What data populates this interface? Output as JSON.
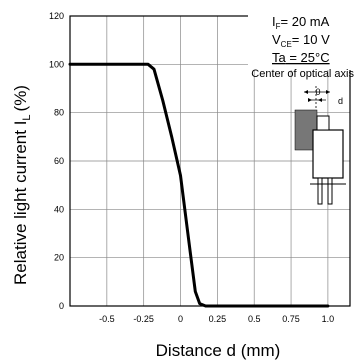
{
  "chart_data": {
    "type": "line",
    "xlabel": "Distance d (mm)",
    "ylabel_main": "Relative light current I",
    "ylabel_sub": "L",
    "ylabel_unit": "(%)",
    "xlim": [
      -0.75,
      1.15
    ],
    "ylim": [
      0,
      120
    ],
    "x_ticks": [
      -0.5,
      -0.25,
      0,
      0.25,
      0.5,
      0.75,
      1.0
    ],
    "x_tick_labels": [
      "-0.5",
      "-0.25",
      "0",
      "0.25",
      "0.5",
      "0.75",
      "1.0"
    ],
    "y_ticks": [
      0,
      20,
      40,
      60,
      80,
      100,
      120
    ],
    "y_tick_labels": [
      "0",
      "20",
      "40",
      "60",
      "80",
      "100",
      "120"
    ],
    "grid": true,
    "series": [
      {
        "x": [
          -0.75,
          -0.3,
          -0.22,
          -0.18,
          -0.12,
          -0.06,
          0.0,
          0.06,
          0.1,
          0.13,
          0.17,
          0.25,
          1.0
        ],
        "y": [
          100,
          100,
          100,
          98,
          85,
          70,
          54,
          25,
          6,
          1,
          0,
          0,
          0
        ]
      }
    ],
    "annotations": {
      "conditions": [
        {
          "main": "I",
          "sub": "F",
          "rest": "= 20 mA"
        },
        {
          "main": "V",
          "sub": "CE",
          "rest": "= 10 V"
        },
        {
          "main": "Ta",
          "sub": "",
          "rest": " = 25°C"
        }
      ],
      "axis_note": "Center of optical axis",
      "diagram_zero": "0",
      "diagram_d": "d"
    }
  }
}
